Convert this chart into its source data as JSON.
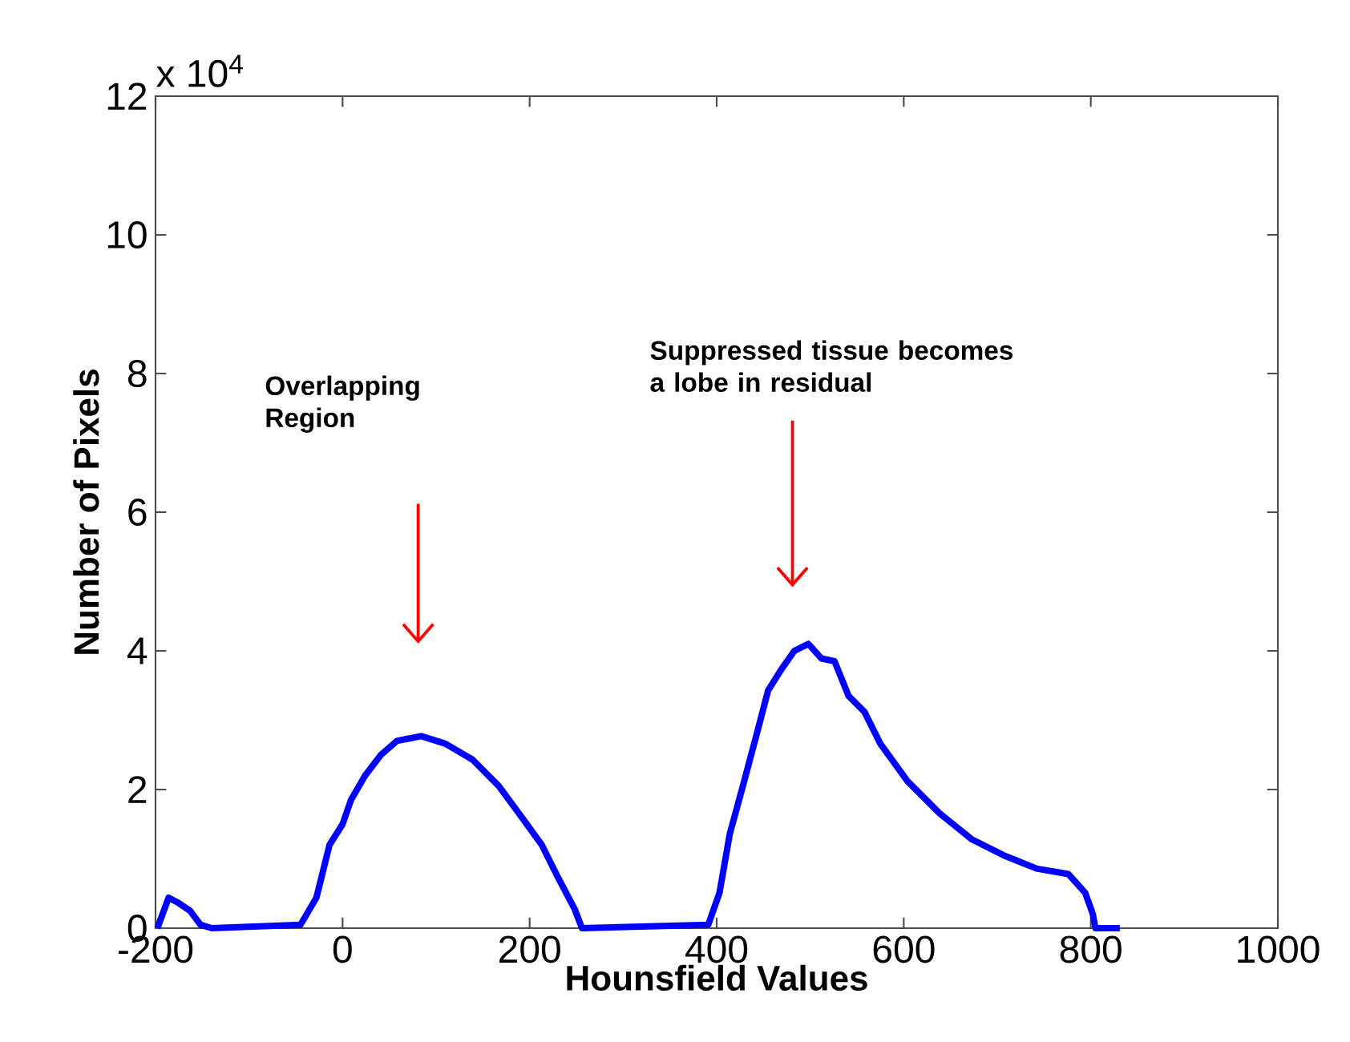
{
  "chart_data": {
    "type": "line",
    "xlabel": "Hounsfield Values",
    "ylabel": "Number of Pixels",
    "xlim": [
      -200,
      1000
    ],
    "ylim": [
      0,
      12
    ],
    "xticks": [
      -200,
      0,
      200,
      400,
      600,
      800,
      1000
    ],
    "yticks": [
      0,
      2,
      4,
      6,
      8,
      10,
      12
    ],
    "annotations": [
      "x 10$^{4}$",
      "Overlapping Region",
      "Suppressed tissue becomes a lobe in residual"
    ],
    "series": [
      {
        "color": "#0000ff",
        "x": [
          -198,
          -186,
          -175,
          -163,
          -152,
          -140,
          -45,
          -28,
          -14,
          0,
          9,
          24,
          41,
          58,
          84,
          110,
          139,
          167,
          190,
          213,
          230,
          248,
          256,
          391,
          403,
          414,
          428,
          443,
          455,
          469,
          483,
          498,
          512,
          526,
          541,
          558,
          575,
          604,
          638,
          673,
          707,
          742,
          776,
          794,
          802,
          805,
          831
        ],
        "values": [
          0,
          0.44,
          0.36,
          0.25,
          0.05,
          0,
          0.05,
          0.44,
          1.2,
          1.5,
          1.85,
          2.2,
          2.5,
          2.7,
          2.77,
          2.66,
          2.43,
          2.05,
          1.63,
          1.2,
          0.74,
          0.28,
          0,
          0.05,
          0.51,
          1.36,
          2.05,
          2.81,
          3.43,
          3.73,
          4.0,
          4.1,
          3.89,
          3.85,
          3.35,
          3.12,
          2.66,
          2.12,
          1.66,
          1.28,
          1.05,
          0.86,
          0.78,
          0.51,
          0.21,
          0,
          0
        ]
      }
    ]
  }
}
